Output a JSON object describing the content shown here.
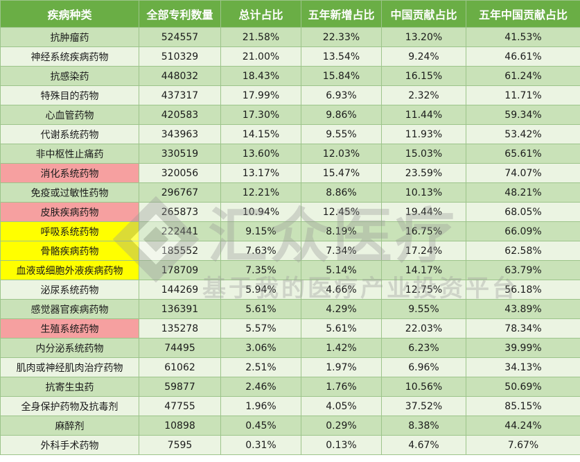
{
  "table": {
    "headers": [
      "疾病种类",
      "全部专利数量",
      "总计占比",
      "五年新增占比",
      "中国贡献占比",
      "五年中国贡献占比"
    ],
    "rows": [
      {
        "name": "抗肿瘤药",
        "count": "524557",
        "total": "21.58%",
        "new5": "22.33%",
        "china": "13.20%",
        "china5": "41.53%",
        "highlight": ""
      },
      {
        "name": "神经系统疾病药物",
        "count": "510329",
        "total": "21.00%",
        "new5": "13.54%",
        "china": "9.24%",
        "china5": "46.61%",
        "highlight": ""
      },
      {
        "name": "抗感染药",
        "count": "448032",
        "total": "18.43%",
        "new5": "15.84%",
        "china": "16.15%",
        "china5": "61.24%",
        "highlight": ""
      },
      {
        "name": "特殊目的药物",
        "count": "437317",
        "total": "17.99%",
        "new5": "6.93%",
        "china": "2.32%",
        "china5": "11.71%",
        "highlight": ""
      },
      {
        "name": "心血管药物",
        "count": "420583",
        "total": "17.30%",
        "new5": "9.86%",
        "china": "11.44%",
        "china5": "59.34%",
        "highlight": ""
      },
      {
        "name": "代谢系统药物",
        "count": "343963",
        "total": "14.15%",
        "new5": "9.55%",
        "china": "11.93%",
        "china5": "53.42%",
        "highlight": ""
      },
      {
        "name": "非中枢性止痛药",
        "count": "330519",
        "total": "13.60%",
        "new5": "12.03%",
        "china": "15.03%",
        "china5": "65.61%",
        "highlight": ""
      },
      {
        "name": "消化系统药物",
        "count": "320056",
        "total": "13.17%",
        "new5": "15.47%",
        "china": "23.59%",
        "china5": "74.07%",
        "highlight": "red"
      },
      {
        "name": "免疫或过敏性药物",
        "count": "296767",
        "total": "12.21%",
        "new5": "8.86%",
        "china": "10.13%",
        "china5": "48.21%",
        "highlight": ""
      },
      {
        "name": "皮肤疾病药物",
        "count": "265873",
        "total": "10.94%",
        "new5": "12.45%",
        "china": "19.44%",
        "china5": "68.05%",
        "highlight": "red"
      },
      {
        "name": "呼吸系统药物",
        "count": "222441",
        "total": "9.15%",
        "new5": "8.19%",
        "china": "16.75%",
        "china5": "66.09%",
        "highlight": "yellow"
      },
      {
        "name": "骨骼疾病药物",
        "count": "185552",
        "total": "7.63%",
        "new5": "7.34%",
        "china": "17.24%",
        "china5": "62.58%",
        "highlight": "yellow"
      },
      {
        "name": "血液或细胞外液疾病药物",
        "count": "178709",
        "total": "7.35%",
        "new5": "5.14%",
        "china": "14.17%",
        "china5": "63.79%",
        "highlight": "yellow"
      },
      {
        "name": "泌尿系统药物",
        "count": "144269",
        "total": "5.94%",
        "new5": "4.66%",
        "china": "12.75%",
        "china5": "56.18%",
        "highlight": ""
      },
      {
        "name": "感觉器官疾病药物",
        "count": "136391",
        "total": "5.61%",
        "new5": "4.29%",
        "china": "9.55%",
        "china5": "43.89%",
        "highlight": ""
      },
      {
        "name": "生殖系统药物",
        "count": "135278",
        "total": "5.57%",
        "new5": "5.61%",
        "china": "22.03%",
        "china5": "78.34%",
        "highlight": "red"
      },
      {
        "name": "内分泌系统药物",
        "count": "74495",
        "total": "3.06%",
        "new5": "1.42%",
        "china": "6.23%",
        "china5": "39.99%",
        "highlight": ""
      },
      {
        "name": "肌肉或神经肌肉治疗药物",
        "count": "61062",
        "total": "2.51%",
        "new5": "1.97%",
        "china": "6.96%",
        "china5": "34.13%",
        "highlight": ""
      },
      {
        "name": "抗寄生虫药",
        "count": "59877",
        "total": "2.46%",
        "new5": "1.76%",
        "china": "10.56%",
        "china5": "50.69%",
        "highlight": ""
      },
      {
        "name": "全身保护药物及抗毒剂",
        "count": "47755",
        "total": "1.96%",
        "new5": "4.05%",
        "china": "37.52%",
        "china5": "85.15%",
        "highlight": ""
      },
      {
        "name": "麻醉剂",
        "count": "10898",
        "total": "0.45%",
        "new5": "0.29%",
        "china": "8.38%",
        "china5": "44.24%",
        "highlight": ""
      },
      {
        "name": "外科手术药物",
        "count": "7595",
        "total": "0.31%",
        "new5": "0.13%",
        "china": "4.67%",
        "china5": "7.67%",
        "highlight": ""
      }
    ]
  },
  "watermark": {
    "main": "汇众医疗",
    "sub": "基于我的医疗产业投资平台"
  },
  "colors": {
    "header_bg": "#6aae45",
    "row_dark": "#c9e2b8",
    "row_light": "#ebf4e2",
    "highlight_red": "#f6a0a0",
    "highlight_yellow": "#ffff00"
  }
}
